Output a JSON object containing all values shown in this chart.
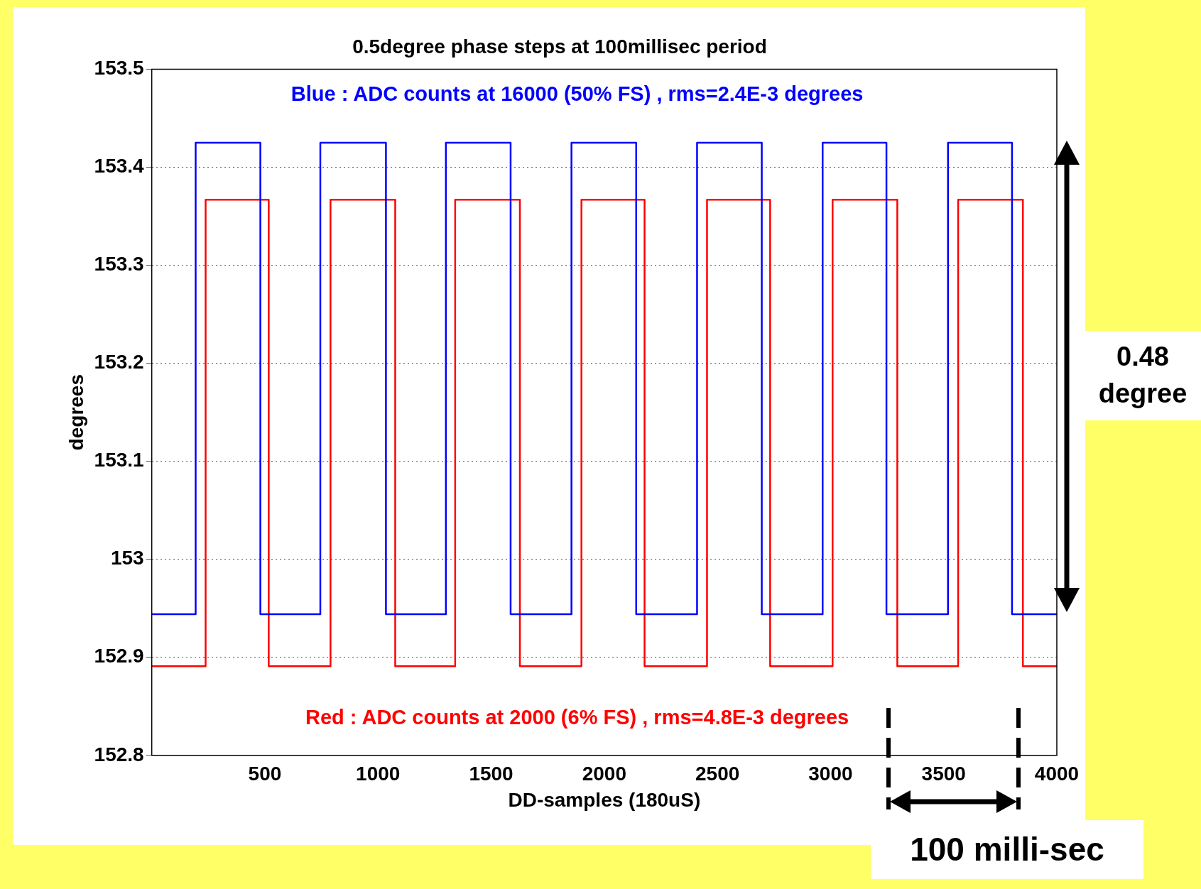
{
  "chart_data": {
    "type": "line",
    "title": "0.5degree phase steps at 100millisec period",
    "xlabel": "DD-samples (180uS)",
    "ylabel": "degrees",
    "xlim": [
      0,
      4000
    ],
    "xticks": [
      500,
      1000,
      1500,
      2000,
      2500,
      3000,
      3500,
      4000
    ],
    "ylim": [
      152.8,
      153.5
    ],
    "yticks": [
      152.8,
      152.9,
      {
        "value": 153,
        "label": "153"
      },
      153.1,
      153.2,
      153.3,
      153.4,
      153.5
    ],
    "grid": "y",
    "series": [
      {
        "color": "#0000ff",
        "x": [
          1,
          194,
          194,
          480,
          480,
          745,
          745,
          1035,
          1035,
          1300,
          1300,
          1586,
          1586,
          1855,
          1855,
          2141,
          2141,
          2410,
          2410,
          2696,
          2696,
          2965,
          2965,
          3247,
          3247,
          3519,
          3519,
          3802,
          3802,
          4000
        ],
        "values": [
          152.944,
          152.944,
          153.425,
          153.425,
          152.944,
          152.944,
          153.425,
          153.425,
          152.944,
          152.944,
          153.425,
          153.425,
          152.944,
          152.944,
          153.425,
          153.425,
          152.944,
          152.944,
          153.425,
          153.425,
          152.944,
          152.944,
          153.425,
          153.425,
          152.944,
          152.944,
          153.425,
          153.425,
          152.944,
          152.944
        ]
      },
      {
        "color": "#ff0000",
        "x": [
          1,
          238,
          238,
          517,
          517,
          790,
          790,
          1076,
          1076,
          1341,
          1341,
          1627,
          1627,
          1899,
          1899,
          2178,
          2178,
          2454,
          2454,
          2733,
          2733,
          3009,
          3009,
          3295,
          3295,
          3564,
          3564,
          3850,
          3850,
          4000
        ],
        "values": [
          152.891,
          152.891,
          153.367,
          153.367,
          152.891,
          152.891,
          153.367,
          153.367,
          152.891,
          152.891,
          153.367,
          153.367,
          152.891,
          152.891,
          153.367,
          153.367,
          152.891,
          152.891,
          153.367,
          153.367,
          152.891,
          152.891,
          153.367,
          153.367,
          152.891,
          152.891,
          153.367,
          153.367,
          152.891,
          152.891
        ]
      }
    ],
    "annotations": [
      "Blue : ADC counts at 16000 (50% FS) , rms=2.4E-3 degrees",
      "Red : ADC counts at 2000 (6% FS) , rms=4.8E-3 degrees",
      "0.48 degree",
      "100 milli-sec"
    ]
  }
}
